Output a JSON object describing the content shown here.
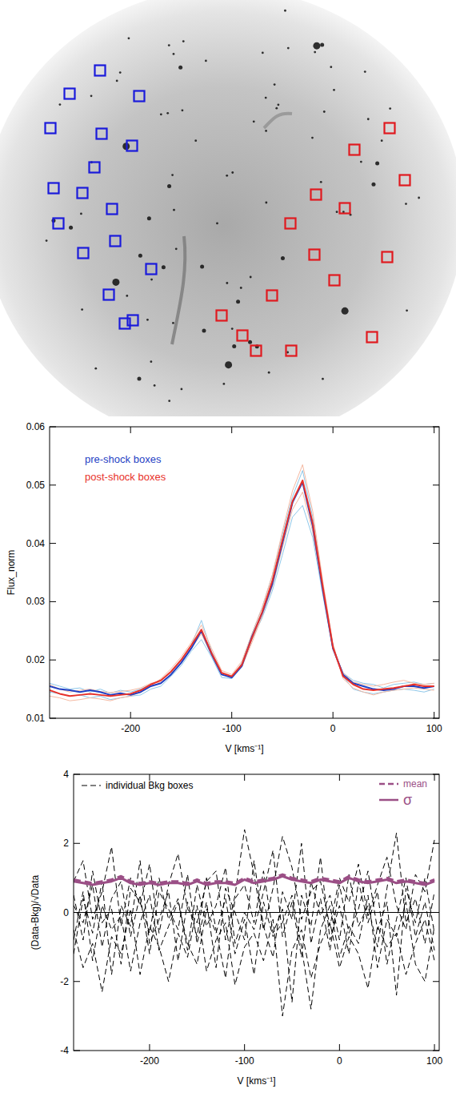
{
  "chart_data": [
    {
      "type": "scatter",
      "marker": "square",
      "tick_labels": false,
      "xlim": [
        0,
        570
      ],
      "ylim": [
        520,
        0
      ],
      "series": [
        {
          "color": "#1a1adb",
          "x": [
            125,
            87,
            174,
            63,
            127,
            165,
            118,
            67,
            103,
            140,
            73,
            144,
            104,
            189,
            136,
            166,
            156
          ],
          "y": [
            88,
            117,
            120,
            160,
            167,
            182,
            209,
            235,
            241,
            261,
            279,
            301,
            316,
            336,
            368,
            400,
            404
          ]
        },
        {
          "color": "#e0191f",
          "x": [
            487,
            443,
            506,
            395,
            431,
            363,
            484,
            393,
            418,
            340,
            277,
            303,
            320,
            364,
            465
          ],
          "y": [
            160,
            187,
            225,
            243,
            260,
            279,
            321,
            318,
            350,
            369,
            394,
            419,
            438,
            438,
            421
          ]
        }
      ]
    },
    {
      "type": "line",
      "legend": "upper left",
      "xlabel": "V [kms⁻¹]",
      "ylabel": "Flux_norm",
      "xlim": [
        -280,
        105
      ],
      "ylim": [
        0.01,
        0.06
      ],
      "xticks": [
        -200,
        -100,
        0,
        100
      ],
      "yticks": [
        0.01,
        0.02,
        0.03,
        0.04,
        0.05,
        0.06
      ],
      "x": [
        -280,
        -270,
        -260,
        -250,
        -240,
        -230,
        -220,
        -210,
        -200,
        -190,
        -180,
        -170,
        -160,
        -150,
        -140,
        -130,
        -120,
        -110,
        -100,
        -90,
        -80,
        -70,
        -60,
        -50,
        -40,
        -30,
        -20,
        -10,
        0,
        10,
        20,
        30,
        40,
        50,
        60,
        70,
        80,
        90,
        100
      ],
      "series": [
        {
          "color": "#8fc8ea",
          "values": [
            0.016,
            0.0155,
            0.015,
            0.0152,
            0.0145,
            0.015,
            0.0143,
            0.0148,
            0.0145,
            0.015,
            0.0158,
            0.0165,
            0.0178,
            0.0198,
            0.0225,
            0.0268,
            0.0215,
            0.0178,
            0.0168,
            0.0188,
            0.0235,
            0.0272,
            0.0318,
            0.038,
            0.0445,
            0.0465,
            0.041,
            0.0312,
            0.0218,
            0.0178,
            0.0165,
            0.016,
            0.0158,
            0.0152,
            0.0158,
            0.016,
            0.0162,
            0.0158,
            0.016
          ]
        },
        {
          "color": "#8fc8ea",
          "values": [
            0.0145,
            0.0142,
            0.0138,
            0.014,
            0.0135,
            0.0138,
            0.0132,
            0.0135,
            0.0138,
            0.014,
            0.015,
            0.0155,
            0.0172,
            0.019,
            0.0215,
            0.0235,
            0.0205,
            0.017,
            0.0168,
            0.0195,
            0.0245,
            0.029,
            0.0345,
            0.0415,
            0.048,
            0.0525,
            0.0445,
            0.033,
            0.0225,
            0.0172,
            0.015,
            0.0145,
            0.0142,
            0.0145,
            0.0148,
            0.015,
            0.0148,
            0.0145,
            0.015
          ]
        },
        {
          "color": "#f5b9a2",
          "values": [
            0.0138,
            0.0135,
            0.013,
            0.0132,
            0.0135,
            0.0133,
            0.013,
            0.0135,
            0.0138,
            0.0145,
            0.0155,
            0.0168,
            0.0185,
            0.0205,
            0.023,
            0.026,
            0.022,
            0.0182,
            0.0175,
            0.0198,
            0.0245,
            0.029,
            0.0345,
            0.042,
            0.049,
            0.0535,
            0.0455,
            0.0335,
            0.0228,
            0.0168,
            0.0152,
            0.0145,
            0.014,
            0.0145,
            0.0148,
            0.015,
            0.0152,
            0.015,
            0.0148
          ]
        },
        {
          "color": "#f5b9a2",
          "values": [
            0.0158,
            0.015,
            0.0145,
            0.0148,
            0.015,
            0.0146,
            0.0144,
            0.0146,
            0.0148,
            0.0152,
            0.016,
            0.0162,
            0.0175,
            0.0195,
            0.022,
            0.0245,
            0.0208,
            0.0175,
            0.017,
            0.0188,
            0.023,
            0.0275,
            0.0325,
            0.0392,
            0.0458,
            0.0488,
            0.042,
            0.0318,
            0.0218,
            0.0178,
            0.0162,
            0.0158,
            0.0155,
            0.0158,
            0.0162,
            0.0165,
            0.016,
            0.0158,
            0.016
          ]
        },
        {
          "name": "pre-shock boxes",
          "color": "#1f3fc4",
          "values": [
            0.0155,
            0.015,
            0.0148,
            0.0145,
            0.0148,
            0.0145,
            0.014,
            0.0143,
            0.014,
            0.0145,
            0.0155,
            0.016,
            0.0175,
            0.0195,
            0.022,
            0.025,
            0.021,
            0.0175,
            0.017,
            0.019,
            0.024,
            0.028,
            0.033,
            0.04,
            0.047,
            0.0505,
            0.043,
            0.032,
            0.022,
            0.0175,
            0.016,
            0.0155,
            0.015,
            0.0148,
            0.015,
            0.0155,
            0.0155,
            0.0152,
            0.0155
          ]
        },
        {
          "name": "post-shock boxes",
          "color": "#e8322a",
          "values": [
            0.0148,
            0.0142,
            0.0138,
            0.014,
            0.0142,
            0.014,
            0.0138,
            0.014,
            0.0142,
            0.0148,
            0.0158,
            0.0165,
            0.018,
            0.02,
            0.0225,
            0.0252,
            0.0212,
            0.0178,
            0.0172,
            0.0192,
            0.0238,
            0.0282,
            0.0335,
            0.0405,
            0.0472,
            0.0508,
            0.0435,
            0.0325,
            0.0222,
            0.0172,
            0.0158,
            0.015,
            0.0148,
            0.015,
            0.0152,
            0.0155,
            0.0158,
            0.0155,
            0.0155
          ]
        }
      ]
    },
    {
      "type": "line",
      "legend": "top",
      "xlabel": "V [kms⁻¹]",
      "ylabel": "(Data-Bkg)/√Data",
      "xlim": [
        -280,
        105
      ],
      "ylim": [
        -4,
        4
      ],
      "xticks": [
        -200,
        -100,
        0,
        100
      ],
      "yticks": [
        -4,
        -2,
        0,
        2,
        4
      ],
      "hline": 0,
      "x": [
        -280,
        -270,
        -260,
        -250,
        -240,
        -230,
        -220,
        -210,
        -200,
        -190,
        -180,
        -170,
        -160,
        -150,
        -140,
        -130,
        -120,
        -110,
        -100,
        -90,
        -80,
        -70,
        -60,
        -50,
        -40,
        -30,
        -20,
        -10,
        0,
        10,
        20,
        30,
        40,
        50,
        60,
        70,
        80,
        90,
        100
      ],
      "series": [
        {
          "name": "individual Bkg boxes",
          "color": "#000000",
          "line_style": "dashed",
          "values": [
            0.5,
            -0.8,
            1.2,
            -0.3,
            0.1,
            -1.5,
            0.7,
            0.3,
            -0.6,
            1.0,
            -0.2,
            0.4,
            -1.1,
            0.8,
            -0.4,
            0.2,
            1.3,
            -0.9,
            0.0,
            -0.5,
            0.6,
            1.8,
            -0.7,
            0.3,
            -1.3,
            0.9,
            -0.1,
            0.5,
            -0.8,
            1.1,
            -0.4,
            0.2,
            -1.0,
            0.7,
            2.3,
            -0.3,
            0.4,
            -0.9,
            0.6
          ]
        },
        {
          "color": "#000000",
          "line_style": "dashed",
          "values": [
            -1.2,
            0.4,
            -0.6,
            0.9,
            -1.8,
            0.2,
            -0.4,
            1.5,
            -0.9,
            -0.2,
            0.6,
            -1.4,
            0.3,
            -0.7,
            1.0,
            -0.5,
            -1.9,
            0.4,
            0.8,
            -0.3,
            1.2,
            -0.6,
            0.1,
            -2.6,
            0.5,
            -0.4,
            1.6,
            -0.8,
            0.2,
            -1.2,
            0.9,
            -0.3,
            0.6,
            -1.5,
            -0.2,
            1.0,
            -0.7,
            0.3,
            -1.1
          ]
        },
        {
          "color": "#000000",
          "line_style": "dashed",
          "values": [
            0.9,
            1.5,
            -0.2,
            0.6,
            1.9,
            -0.4,
            1.0,
            0.2,
            1.4,
            -0.6,
            0.8,
            1.7,
            0.1,
            -0.3,
            0.9,
            1.2,
            -0.8,
            0.5,
            2.4,
            1.1,
            -0.5,
            0.7,
            2.2,
            1.3,
            -0.2,
            0.6,
            0.9,
            -0.4,
            1.0,
            0.3,
            1.4,
            -0.1,
            0.8,
            1.6,
            0.2,
            -0.5,
            1.1,
            0.6,
            2.1
          ]
        },
        {
          "color": "#000000",
          "line_style": "dashed",
          "values": [
            -0.5,
            -1.6,
            -0.9,
            -2.3,
            -0.7,
            -1.2,
            0.1,
            -1.8,
            -0.4,
            -1.0,
            -2.0,
            -0.6,
            -1.3,
            0.2,
            -1.7,
            -0.8,
            -0.3,
            -2.1,
            -1.0,
            -0.6,
            -1.4,
            -0.2,
            -3.0,
            -1.1,
            -0.5,
            -1.9,
            -0.9,
            -0.3,
            -1.6,
            -0.7,
            -1.2,
            -2.2,
            -0.4,
            -1.0,
            -0.6,
            -1.8,
            -0.9,
            -0.2,
            -1.4
          ]
        },
        {
          "color": "#000000",
          "line_style": "dashed",
          "values": [
            0.2,
            -0.3,
            0.8,
            -1.0,
            0.4,
            0.9,
            -0.7,
            0.5,
            -1.2,
            0.6,
            0.1,
            -0.5,
            1.1,
            -0.9,
            0.3,
            -1.6,
            0.7,
            0.0,
            -0.8,
            1.5,
            -0.4,
            -1.3,
            0.6,
            -0.2,
            2.0,
            -0.9,
            0.4,
            -1.1,
            0.8,
            -0.6,
            0.1,
            1.2,
            -0.5,
            0.3,
            -2.4,
            0.7,
            -0.3,
            1.0,
            -0.6
          ]
        },
        {
          "color": "#000000",
          "line_style": "dashed",
          "values": [
            -0.8,
            0.6,
            -1.4,
            0.2,
            -0.5,
            -0.1,
            -1.7,
            -0.3,
            0.5,
            -1.1,
            -0.4,
            0.3,
            -0.9,
            -1.5,
            0.1,
            -0.6,
            0.4,
            -1.2,
            -0.2,
            -1.8,
            0.3,
            -0.7,
            -0.3,
            0.5,
            -1.0,
            -2.8,
            -0.5,
            0.2,
            -1.3,
            -0.4,
            -0.9,
            0.5,
            -1.6,
            -0.2,
            -0.7,
            0.3,
            -1.5,
            -2.0,
            -0.4
          ]
        },
        {
          "name": "mean",
          "color": "#9b4f86",
          "line_style": "dashed",
          "values": [
            0.95,
            0.9,
            0.85,
            0.9,
            0.95,
            1.05,
            0.9,
            0.85,
            0.9,
            0.85,
            0.9,
            0.9,
            0.85,
            0.95,
            0.85,
            0.9,
            0.9,
            0.85,
            1.0,
            0.9,
            0.95,
            1.0,
            1.1,
            1.0,
            0.95,
            0.9,
            1.0,
            0.95,
            0.9,
            1.05,
            0.95,
            0.9,
            0.95,
            1.0,
            0.9,
            0.95,
            0.9,
            0.85,
            0.95
          ]
        },
        {
          "name": "σ",
          "color": "#9b4f86",
          "line_style": "solid",
          "values": [
            0.9,
            0.85,
            0.8,
            0.85,
            0.9,
            1.0,
            0.85,
            0.8,
            0.85,
            0.8,
            0.85,
            0.85,
            0.8,
            0.9,
            0.8,
            0.85,
            0.85,
            0.8,
            0.95,
            0.85,
            0.9,
            0.95,
            1.05,
            0.95,
            0.9,
            0.85,
            0.95,
            0.9,
            0.85,
            1.0,
            0.9,
            0.85,
            0.9,
            0.95,
            0.85,
            0.9,
            0.85,
            0.8,
            0.9
          ]
        }
      ]
    }
  ]
}
